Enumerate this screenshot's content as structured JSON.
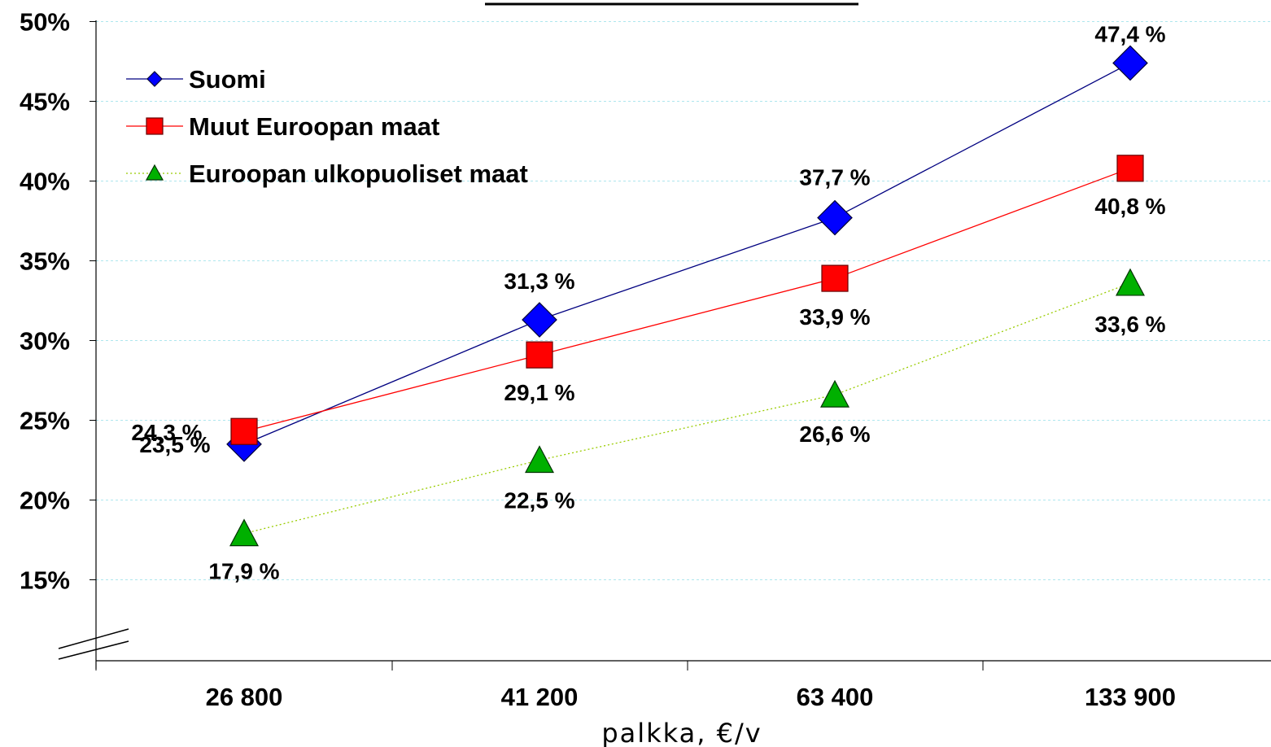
{
  "chart_data": {
    "type": "line",
    "title": "",
    "xlabel": "palkka, €/v",
    "ylabel": "",
    "categories": [
      "26 800",
      "41 200",
      "63 400",
      "133 900"
    ],
    "ylim": [
      10,
      50
    ],
    "yticks": [
      15,
      20,
      25,
      30,
      35,
      40,
      45,
      50
    ],
    "ytick_labels": [
      "15%",
      "20%",
      "25%",
      "30%",
      "35%",
      "40%",
      "45%",
      "50%"
    ],
    "grid": true,
    "legend_position": "top-left",
    "axis_break": true,
    "series": [
      {
        "name": "Suomi",
        "values": [
          23.5,
          31.3,
          37.7,
          47.4
        ],
        "labels": [
          "23,5 %",
          "31,3 %",
          "37,7 %",
          "47,4 %"
        ],
        "color": "#0000ff",
        "line_color": "#000080",
        "marker": "diamond",
        "line_style": "solid"
      },
      {
        "name": "Muut Euroopan maat",
        "values": [
          24.3,
          29.1,
          33.9,
          40.8
        ],
        "labels": [
          "24,3 %",
          "29,1 %",
          "33,9 %",
          "40,8 %"
        ],
        "color": "#ff0000",
        "line_color": "#ff0000",
        "marker": "square",
        "line_style": "solid"
      },
      {
        "name": "Euroopan ulkopuoliset maat",
        "values": [
          17.9,
          22.5,
          26.6,
          33.6
        ],
        "labels": [
          "17,9 %",
          "22,5 %",
          "26,6 %",
          "33,6 %"
        ],
        "color": "#00b000",
        "line_color": "#99cc00",
        "marker": "triangle",
        "line_style": "dotted"
      }
    ]
  }
}
